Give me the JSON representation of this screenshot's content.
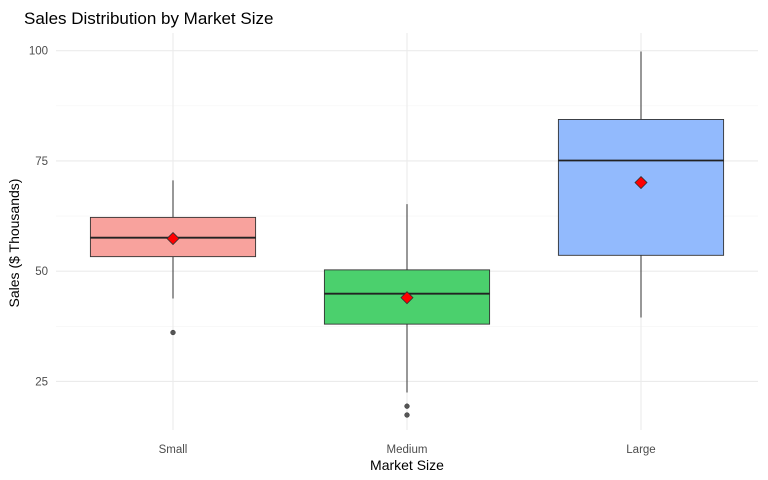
{
  "chart_data": {
    "type": "boxplot",
    "title": "Sales Distribution by Market Size",
    "xlabel": "Market Size",
    "ylabel": "Sales ($ Thousands)",
    "ylim": [
      14,
      104
    ],
    "yticks": [
      25,
      50,
      75,
      100
    ],
    "grid": true,
    "categories": [
      "Small",
      "Medium",
      "Large"
    ],
    "boxes": [
      {
        "name": "Small",
        "fill": "#F8A29D",
        "whisker_low": 43.8,
        "q1": 53.3,
        "median": 57.6,
        "q3": 62.2,
        "whisker_high": 70.6,
        "mean": 57.4,
        "outliers": [
          36.1
        ]
      },
      {
        "name": "Medium",
        "fill": "#4BD06D",
        "whisker_low": 22.5,
        "q1": 38.0,
        "median": 44.9,
        "q3": 50.3,
        "whisker_high": 65.2,
        "mean": 44.0,
        "outliers": [
          19.4,
          17.4
        ]
      },
      {
        "name": "Large",
        "fill": "#92BAFD",
        "whisker_low": 39.5,
        "q1": 53.6,
        "median": 75.1,
        "q3": 84.4,
        "whisker_high": 99.8,
        "mean": 70.1,
        "outliers": []
      }
    ],
    "mean_marker_color": "#FF0000",
    "outlier_color": "#555555"
  }
}
